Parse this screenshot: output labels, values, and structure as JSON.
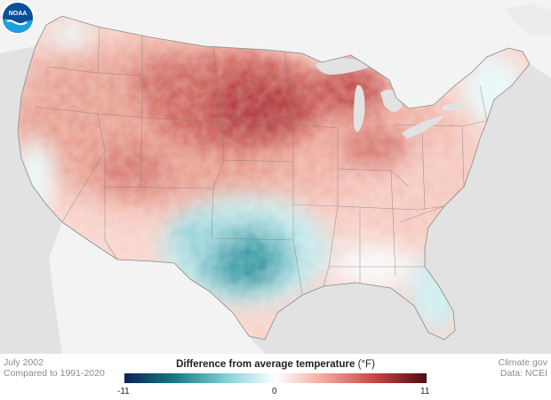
{
  "map": {
    "date": "July 2002",
    "baseline": "Compared to 1991-2020",
    "credit": "Climate.gov",
    "data_source": "Data: NCEI",
    "logo_text": "NOAA",
    "legend": {
      "title": "Difference from average temperature",
      "unit": "(°F)",
      "min": "-11",
      "mid": "0",
      "max": "11",
      "colors": [
        "#0d2157",
        "#137a87",
        "#7fd0d8",
        "#ffffff",
        "#f1a497",
        "#c6433f",
        "#4f0c10"
      ]
    }
  }
}
